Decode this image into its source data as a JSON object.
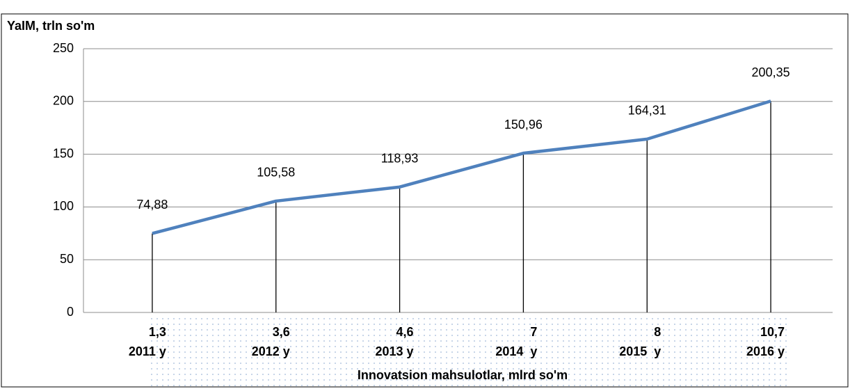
{
  "chart_data": {
    "type": "line",
    "title": "YaIM, trln so'm",
    "x_label": "Innovatsion mahsulotlar, mlrd so'm",
    "categories": [
      [
        "1,3",
        "2011 y"
      ],
      [
        "3,6",
        "2012 y"
      ],
      [
        "4,6",
        "2013 y"
      ],
      [
        "7",
        "2014  y"
      ],
      [
        "8",
        "2015  y"
      ],
      [
        "10,7",
        "2016 y"
      ]
    ],
    "series": [
      {
        "color": "#4f81bd",
        "values": [
          74.88,
          105.58,
          118.93,
          150.96,
          164.31,
          200.35
        ],
        "value_labels": [
          "74,88",
          "105,58",
          "118,93",
          "150,96",
          "164,31",
          "200,35"
        ]
      }
    ],
    "ylim": [
      0,
      250
    ],
    "yticks": [
      0,
      50,
      100,
      150,
      200,
      250
    ],
    "grid": true,
    "drop_lines": true
  }
}
